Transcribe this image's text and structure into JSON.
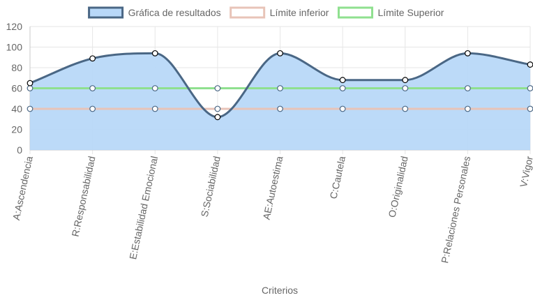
{
  "chart_data": {
    "type": "line",
    "xlabel": "Criterios",
    "ylabel": "",
    "ylim": [
      0,
      120
    ],
    "yticks": [
      0,
      20,
      40,
      60,
      80,
      100,
      120
    ],
    "grid": true,
    "legend_position": "top",
    "categories": [
      "A:Ascendencia",
      "R:Responsabilidad",
      "E:Estabilidad Emocional",
      "S:Sociabilidad",
      "AE:Autoestima",
      "C:Cautela",
      "O:Originalidad",
      "P:Relaciones Personales",
      "V:Vigor"
    ],
    "series": [
      {
        "name": "Gráfica de resultados",
        "values": [
          65,
          89,
          94,
          32,
          94,
          68,
          68,
          94,
          83
        ],
        "line_color": "#4a6785",
        "fill_color": "#b8d8f8",
        "filled": true
      },
      {
        "name": "Límite inferior",
        "values": [
          40,
          40,
          40,
          40,
          40,
          40,
          40,
          40,
          40
        ],
        "line_color": "#e8c4b8",
        "fill_color": "#ffffff",
        "filled": false
      },
      {
        "name": "Límite Superior",
        "values": [
          60,
          60,
          60,
          60,
          60,
          60,
          60,
          60,
          60
        ],
        "line_color": "#8fe08f",
        "fill_color": "#ffffff",
        "filled": false
      }
    ]
  }
}
